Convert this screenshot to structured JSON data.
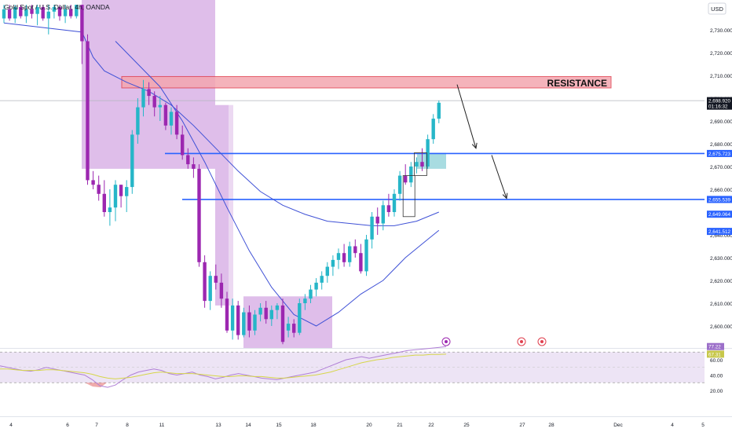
{
  "header": {
    "symbol_title": "Gold Spot / U.S. Dollar, 4h, OANDA",
    "currency_label": "USD"
  },
  "annotations": {
    "resistance_label": "RESISTANCE"
  },
  "colors": {
    "up": "#26b6c8",
    "down": "#9c27b0",
    "zone_fill": "#d9b3e6",
    "resistance_fill": "#f4a6b0",
    "resistance_border": "#e0404f",
    "level_line": "#2962ff",
    "ma": "#3f51d6",
    "rsi_line": "#b07fd6",
    "rsi_signal": "#d6d64a",
    "rsi_band": "#ede4f5"
  },
  "chart_data": [
    {
      "type": "candlestick",
      "title": "Gold Spot / U.S. Dollar, 4h, OANDA",
      "ylim": [
        2592,
        2740
      ],
      "ytick_values": [
        2600,
        2610,
        2620,
        2630,
        2640,
        2650,
        2660,
        2670,
        2680,
        2690,
        2700,
        2710,
        2720,
        2730
      ],
      "ytick_labels": [
        "2,600.000",
        "2,610.000",
        "2,620.000",
        "2,630.000",
        "2,640.000",
        "2,650.000",
        "2,660.000",
        "2,670.000",
        "2,680.000",
        "2,690.000",
        "2,700.000",
        "2,710.000",
        "2,720.000",
        "2,730.000"
      ],
      "x_labels": [
        "4",
        "6",
        "7",
        "8",
        "11",
        "13",
        "14",
        "15",
        "18",
        "20",
        "21",
        "22",
        "25",
        "27",
        "28",
        "Dec",
        "4",
        "5"
      ],
      "resistance_zone": [
        2704.5,
        2709.5
      ],
      "levels": [
        2675.723,
        2655.539
      ],
      "price_tags": [
        {
          "value": 2698.92,
          "label": "2,698.920",
          "sub": "01:16:32"
        },
        {
          "value": 2675.723,
          "label": "2,675.723"
        },
        {
          "value": 2655.539,
          "label": "2,655.539"
        },
        {
          "value": 2649.064,
          "label": "2,649.064"
        },
        {
          "value": 2641.512,
          "label": "2,641.512"
        }
      ],
      "series": [
        {
          "candles": [
            [
              2735,
              2741,
              2733,
              2739
            ],
            [
              2739,
              2741,
              2734,
              2735
            ],
            [
              2735,
              2741,
              2733,
              2740
            ],
            [
              2740,
              2741,
              2735,
              2736
            ],
            [
              2736,
              2741,
              2733,
              2739
            ],
            [
              2739,
              2741,
              2735,
              2737
            ],
            [
              2737,
              2741,
              2732,
              2740
            ],
            [
              2740,
              2741,
              2734,
              2735
            ],
            [
              2735,
              2741,
              2728,
              2738
            ],
            [
              2738,
              2741,
              2735,
              2740
            ],
            [
              2740,
              2741,
              2734,
              2736
            ],
            [
              2736,
              2741,
              2733,
              2739
            ],
            [
              2739,
              2741,
              2735,
              2736
            ],
            [
              2736,
              2741,
              2735,
              2741
            ],
            [
              2741,
              2741,
              2715,
              2725
            ],
            [
              2725,
              2728,
              2662,
              2664
            ],
            [
              2664,
              2668,
              2660,
              2662
            ],
            [
              2662,
              2666,
              2655,
              2658
            ],
            [
              2658,
              2664,
              2648,
              2650
            ],
            [
              2650,
              2660,
              2644,
              2652
            ],
            [
              2652,
              2664,
              2646,
              2662
            ],
            [
              2662,
              2662,
              2652,
              2657
            ],
            [
              2657,
              2664,
              2650,
              2661
            ],
            [
              2661,
              2686,
              2658,
              2684
            ],
            [
              2684,
              2700,
              2680,
              2696
            ],
            [
              2696,
              2708,
              2692,
              2704
            ],
            [
              2704,
              2707,
              2697,
              2701
            ],
            [
              2701,
              2703,
              2692,
              2696
            ],
            [
              2696,
              2701,
              2690,
              2697
            ],
            [
              2697,
              2698,
              2686,
              2688
            ],
            [
              2688,
              2696,
              2684,
              2694
            ],
            [
              2694,
              2697,
              2682,
              2684
            ],
            [
              2684,
              2688,
              2673,
              2675
            ],
            [
              2675,
              2678,
              2669,
              2671
            ],
            [
              2671,
              2674,
              2665,
              2669
            ],
            [
              2669,
              2671,
              2626,
              2628
            ],
            [
              2628,
              2631,
              2608,
              2611
            ],
            [
              2611,
              2624,
              2607,
              2622
            ],
            [
              2622,
              2627,
              2616,
              2619
            ],
            [
              2619,
              2623,
              2608,
              2612
            ],
            [
              2612,
              2615,
              2597,
              2598
            ],
            [
              2598,
              2612,
              2594,
              2609
            ],
            [
              2609,
              2611,
              2594,
              2596
            ],
            [
              2596,
              2608,
              2595,
              2606
            ],
            [
              2606,
              2609,
              2595,
              2598
            ],
            [
              2598,
              2607,
              2596,
              2605
            ],
            [
              2605,
              2610,
              2602,
              2608
            ],
            [
              2608,
              2611,
              2601,
              2603
            ],
            [
              2603,
              2609,
              2600,
              2607
            ],
            [
              2607,
              2610,
              2603,
              2609
            ],
            [
              2609,
              2612,
              2592,
              2593
            ],
            [
              2598,
              2604,
              2595,
              2601
            ],
            [
              2601,
              2603,
              2595,
              2597
            ],
            [
              2597,
              2612,
              2596,
              2610
            ],
            [
              2610,
              2614,
              2607,
              2612
            ],
            [
              2612,
              2618,
              2610,
              2616
            ],
            [
              2616,
              2621,
              2613,
              2619
            ],
            [
              2619,
              2624,
              2616,
              2622
            ],
            [
              2622,
              2628,
              2619,
              2626
            ],
            [
              2626,
              2631,
              2622,
              2629
            ],
            [
              2629,
              2634,
              2625,
              2632
            ],
            [
              2632,
              2636,
              2626,
              2628
            ],
            [
              2628,
              2637,
              2626,
              2635
            ],
            [
              2635,
              2638,
              2630,
              2632
            ],
            [
              2632,
              2636,
              2623,
              2624
            ],
            [
              2624,
              2640,
              2622,
              2638
            ],
            [
              2638,
              2650,
              2634,
              2648
            ],
            [
              2648,
              2652,
              2640,
              2645
            ],
            [
              2645,
              2655,
              2642,
              2653
            ],
            [
              2653,
              2658,
              2648,
              2650
            ],
            [
              2650,
              2660,
              2648,
              2658
            ],
            [
              2658,
              2668,
              2655,
              2666
            ],
            [
              2666,
              2671,
              2662,
              2663
            ],
            [
              2663,
              2672,
              2661,
              2670
            ],
            [
              2670,
              2674,
              2667,
              2672
            ],
            [
              2672,
              2678,
              2668,
              2670
            ],
            [
              2670,
              2684,
              2669,
              2682
            ],
            [
              2682,
              2693,
              2680,
              2691
            ],
            [
              2691,
              2699,
              2689,
              2698
            ]
          ]
        }
      ],
      "moving_averages": [
        {
          "x": [
            0,
            14,
            16,
            18,
            22,
            26,
            30,
            34,
            38,
            42,
            46,
            50,
            54,
            58,
            62,
            66,
            70,
            74,
            78
          ],
          "y": [
            2733,
            2729,
            2718,
            2712,
            2707,
            2703,
            2697,
            2688,
            2678,
            2668,
            2659,
            2653,
            2649,
            2646,
            2645,
            2644,
            2644,
            2646,
            2650
          ]
        },
        {
          "x": [
            20,
            24,
            28,
            32,
            36,
            40,
            44,
            48,
            52,
            56,
            60,
            64,
            68,
            72,
            76,
            78
          ],
          "y": [
            2725,
            2715,
            2705,
            2690,
            2672,
            2652,
            2633,
            2617,
            2605,
            2600,
            2606,
            2614,
            2620,
            2630,
            2638,
            2642
          ]
        }
      ]
    },
    {
      "type": "line",
      "title": "",
      "ylim": [
        15,
        80
      ],
      "ytick_values": [
        20,
        40,
        60
      ],
      "ytick_labels": [
        "20.00",
        "40.00",
        "60.00"
      ],
      "band": [
        30,
        70
      ],
      "tags": [
        {
          "value": 77.22,
          "label": "77.22"
        },
        {
          "value": 67.31,
          "label": "67.31"
        }
      ],
      "series": [
        {
          "values": [
            52,
            50,
            48,
            46,
            45,
            47,
            50,
            48,
            46,
            44,
            42,
            40,
            34,
            26,
            24,
            27,
            34,
            40,
            44,
            46,
            48,
            46,
            42,
            40,
            42,
            44,
            40,
            38,
            35,
            37,
            40,
            42,
            40,
            38,
            36,
            35,
            34,
            36,
            38,
            40,
            42,
            44,
            48,
            52,
            56,
            60,
            62,
            64,
            62,
            64,
            66,
            68,
            70,
            72,
            73,
            74,
            75,
            76,
            77.22
          ]
        },
        {
          "values": [
            48,
            48,
            47,
            46,
            46,
            46,
            47,
            47,
            46,
            45,
            44,
            43,
            41,
            38,
            36,
            35,
            36,
            37,
            39,
            41,
            43,
            44,
            43,
            42,
            42,
            42,
            41,
            40,
            39,
            38,
            38,
            39,
            39,
            38,
            38,
            37,
            36,
            36,
            37,
            38,
            39,
            40,
            42,
            44,
            47,
            50,
            53,
            56,
            58,
            60,
            61,
            63,
            64,
            65,
            66,
            66,
            67,
            67,
            67.31
          ]
        }
      ]
    }
  ]
}
